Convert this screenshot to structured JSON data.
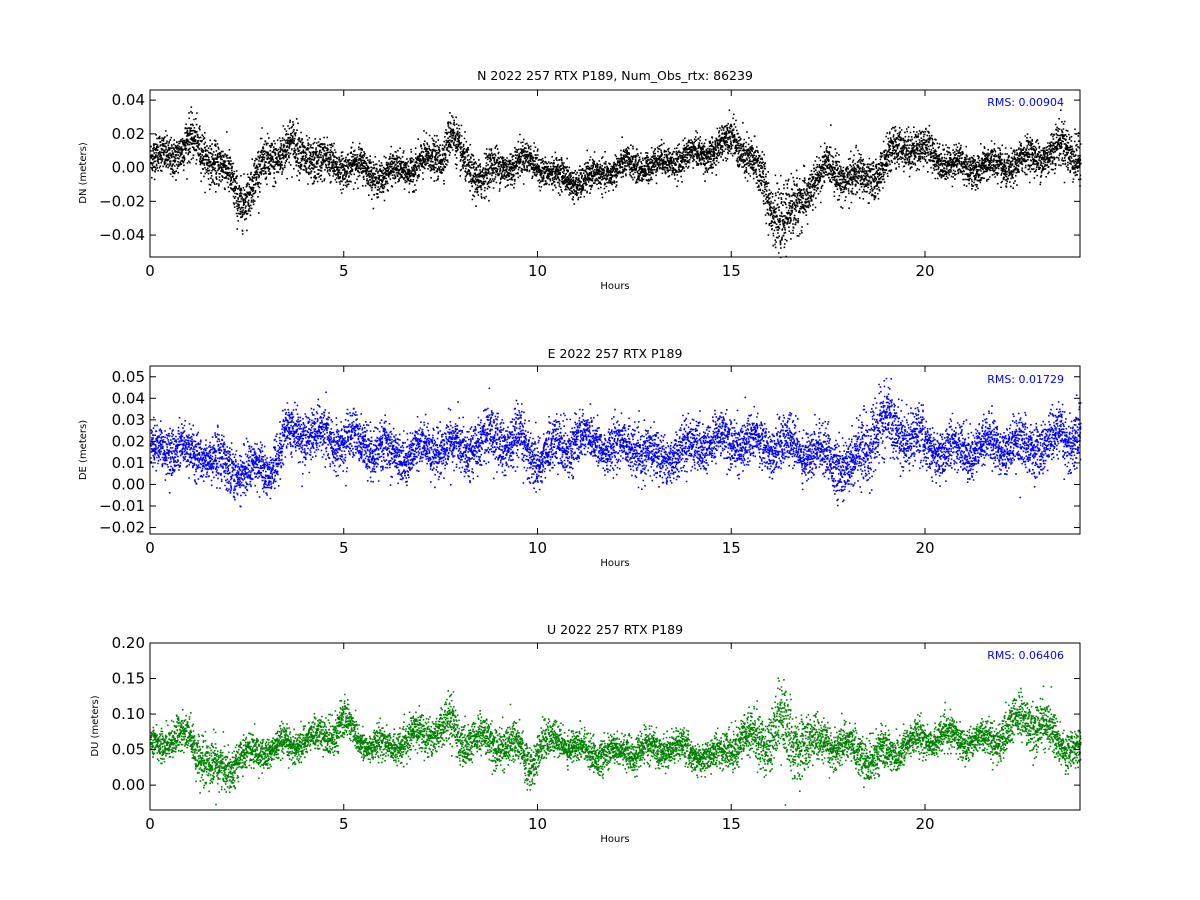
{
  "chart_data": [
    {
      "type": "scatter",
      "title": "N 2022 257 RTX  P189, Num_Obs_rtx: 86239",
      "xlabel": "Hours",
      "ylabel": "DN (meters)",
      "xlim": [
        0,
        24
      ],
      "ylim": [
        -0.053,
        0.046
      ],
      "xticks": [
        0,
        5,
        10,
        15,
        20
      ],
      "xtick_labels": [
        "0",
        "5",
        "10",
        "15",
        "20"
      ],
      "yticks": [
        -0.04,
        -0.02,
        0.0,
        0.02,
        0.04
      ],
      "ytick_labels": [
        "−0.04",
        "−0.02",
        "0.00",
        "0.02",
        "0.04"
      ],
      "annotation": "RMS:  0.00904",
      "color": "#000000",
      "annotation_color": "#0000ff",
      "series": [
        {
          "x": [
            0,
            0.5,
            1.0,
            1.5,
            2.0,
            2.3,
            2.6,
            3.0,
            3.5,
            4.0,
            4.5,
            5.0,
            5.5,
            6.0,
            6.5,
            7.0,
            7.5,
            7.75,
            8.0,
            8.5,
            9.0,
            9.5,
            10.0,
            10.5,
            11.0,
            11.5,
            12.0,
            12.5,
            13.0,
            13.5,
            14.0,
            14.5,
            15.0,
            15.5,
            16.0,
            16.3,
            16.6,
            17.0,
            17.5,
            18.0,
            18.5,
            19.0,
            19.5,
            20.0,
            20.5,
            21.0,
            21.5,
            22.0,
            22.5,
            23.0,
            23.5,
            24.0
          ],
          "y": [
            0.005,
            0.008,
            0.015,
            0.008,
            -0.005,
            -0.018,
            -0.012,
            0.005,
            0.012,
            0.008,
            0.002,
            0.002,
            0.0,
            -0.005,
            0.0,
            0.002,
            0.008,
            0.022,
            0.005,
            -0.005,
            0.0,
            0.005,
            0.002,
            -0.005,
            -0.008,
            -0.005,
            0.0,
            0.002,
            0.002,
            0.005,
            0.008,
            0.01,
            0.018,
            0.005,
            -0.02,
            -0.03,
            -0.028,
            -0.01,
            0.0,
            -0.005,
            -0.008,
            0.005,
            0.015,
            0.01,
            0.005,
            0.0,
            0.002,
            0.0,
            0.005,
            0.008,
            0.012,
            0.008
          ],
          "spread": [
            0.01,
            0.01,
            0.012,
            0.011,
            0.012,
            0.013,
            0.012,
            0.012,
            0.013,
            0.012,
            0.011,
            0.009,
            0.009,
            0.009,
            0.008,
            0.01,
            0.01,
            0.012,
            0.011,
            0.011,
            0.01,
            0.009,
            0.008,
            0.008,
            0.008,
            0.008,
            0.008,
            0.008,
            0.008,
            0.008,
            0.008,
            0.009,
            0.01,
            0.012,
            0.015,
            0.016,
            0.016,
            0.012,
            0.01,
            0.011,
            0.011,
            0.01,
            0.011,
            0.01,
            0.009,
            0.009,
            0.009,
            0.009,
            0.009,
            0.01,
            0.012,
            0.012
          ]
        }
      ]
    },
    {
      "type": "scatter",
      "title": "E 2022 257 RTX  P189",
      "xlabel": "Hours",
      "ylabel": "DE (meters)",
      "xlim": [
        0,
        24
      ],
      "ylim": [
        -0.023,
        0.055
      ],
      "xticks": [
        0,
        5,
        10,
        15,
        20
      ],
      "xtick_labels": [
        "0",
        "5",
        "10",
        "15",
        "20"
      ],
      "yticks": [
        -0.02,
        -0.01,
        0.0,
        0.01,
        0.02,
        0.03,
        0.04,
        0.05
      ],
      "ytick_labels": [
        "−0.02",
        "−0.01",
        "0.00",
        "0.01",
        "0.02",
        "0.03",
        "0.04",
        "0.05"
      ],
      "annotation": "RMS:  0.01729",
      "color": "#0000ff",
      "annotation_color": "#0000ff",
      "series": [
        {
          "x": [
            0,
            0.5,
            1.0,
            1.5,
            2.0,
            2.5,
            3.0,
            3.3,
            3.5,
            4.0,
            4.5,
            5.0,
            5.5,
            6.0,
            6.5,
            7.0,
            7.5,
            8.0,
            8.5,
            9.0,
            9.5,
            10.0,
            10.5,
            11.0,
            11.5,
            12.0,
            12.5,
            13.0,
            13.5,
            14.0,
            14.5,
            15.0,
            15.5,
            16.0,
            16.5,
            17.0,
            17.5,
            18.0,
            18.3,
            18.6,
            19.0,
            19.5,
            20.0,
            20.5,
            21.0,
            21.5,
            22.0,
            22.5,
            23.0,
            23.5,
            24.0
          ],
          "y": [
            0.016,
            0.017,
            0.015,
            0.014,
            0.008,
            0.006,
            0.007,
            0.012,
            0.024,
            0.024,
            0.022,
            0.02,
            0.02,
            0.016,
            0.014,
            0.016,
            0.017,
            0.018,
            0.02,
            0.022,
            0.018,
            0.013,
            0.017,
            0.022,
            0.02,
            0.017,
            0.018,
            0.012,
            0.015,
            0.018,
            0.02,
            0.021,
            0.02,
            0.019,
            0.018,
            0.016,
            0.014,
            0.006,
            0.012,
            0.025,
            0.027,
            0.024,
            0.018,
            0.016,
            0.017,
            0.018,
            0.019,
            0.017,
            0.019,
            0.022,
            0.024
          ],
          "spread": [
            0.009,
            0.009,
            0.009,
            0.009,
            0.01,
            0.01,
            0.009,
            0.01,
            0.01,
            0.01,
            0.01,
            0.01,
            0.01,
            0.01,
            0.01,
            0.01,
            0.01,
            0.01,
            0.01,
            0.012,
            0.012,
            0.011,
            0.01,
            0.01,
            0.01,
            0.01,
            0.01,
            0.01,
            0.01,
            0.01,
            0.01,
            0.01,
            0.01,
            0.01,
            0.01,
            0.01,
            0.01,
            0.012,
            0.014,
            0.014,
            0.013,
            0.012,
            0.011,
            0.01,
            0.01,
            0.01,
            0.01,
            0.01,
            0.01,
            0.011,
            0.012
          ]
        }
      ]
    },
    {
      "type": "scatter",
      "title": "U 2022 257 RTX  P189",
      "xlabel": "Hours",
      "ylabel": "DU (meters)",
      "xlim": [
        0,
        24
      ],
      "ylim": [
        -0.035,
        0.2
      ],
      "xticks": [
        0,
        5,
        10,
        15,
        20
      ],
      "xtick_labels": [
        "0",
        "5",
        "10",
        "15",
        "20"
      ],
      "yticks": [
        0.0,
        0.05,
        0.1,
        0.15,
        0.2
      ],
      "ytick_labels": [
        "0.00",
        "0.05",
        "0.10",
        "0.15",
        "0.20"
      ],
      "annotation": "RMS:  0.06406",
      "color": "#008000",
      "annotation_color": "#0000ff",
      "series": [
        {
          "x": [
            0,
            0.5,
            1.0,
            1.3,
            1.6,
            2.0,
            2.5,
            3.0,
            3.5,
            4.0,
            4.5,
            5.0,
            5.5,
            6.0,
            6.5,
            7.0,
            7.5,
            7.8,
            8.0,
            8.5,
            9.0,
            9.5,
            9.8,
            10.0,
            10.5,
            11.0,
            11.5,
            12.0,
            12.5,
            13.0,
            13.5,
            14.0,
            14.5,
            15.0,
            15.5,
            16.0,
            16.3,
            16.6,
            17.0,
            17.5,
            18.0,
            18.5,
            19.0,
            19.5,
            20.0,
            20.5,
            21.0,
            21.5,
            22.0,
            22.5,
            22.8,
            23.0,
            23.5,
            24.0
          ],
          "y": [
            0.06,
            0.065,
            0.07,
            0.04,
            0.02,
            0.03,
            0.045,
            0.05,
            0.055,
            0.065,
            0.07,
            0.09,
            0.06,
            0.055,
            0.06,
            0.075,
            0.08,
            0.09,
            0.06,
            0.065,
            0.06,
            0.055,
            0.03,
            0.055,
            0.065,
            0.055,
            0.045,
            0.045,
            0.05,
            0.05,
            0.055,
            0.045,
            0.04,
            0.06,
            0.065,
            0.07,
            0.08,
            0.065,
            0.06,
            0.06,
            0.055,
            0.04,
            0.045,
            0.06,
            0.065,
            0.07,
            0.065,
            0.065,
            0.07,
            0.095,
            0.09,
            0.085,
            0.06,
            0.05
          ],
          "spread": [
            0.02,
            0.02,
            0.025,
            0.03,
            0.03,
            0.025,
            0.02,
            0.02,
            0.02,
            0.02,
            0.02,
            0.025,
            0.02,
            0.02,
            0.02,
            0.025,
            0.025,
            0.03,
            0.025,
            0.025,
            0.025,
            0.025,
            0.03,
            0.025,
            0.02,
            0.02,
            0.02,
            0.02,
            0.02,
            0.02,
            0.02,
            0.02,
            0.02,
            0.025,
            0.03,
            0.04,
            0.045,
            0.04,
            0.03,
            0.025,
            0.025,
            0.025,
            0.025,
            0.025,
            0.02,
            0.02,
            0.02,
            0.02,
            0.025,
            0.03,
            0.03,
            0.03,
            0.025,
            0.025
          ]
        }
      ]
    }
  ]
}
